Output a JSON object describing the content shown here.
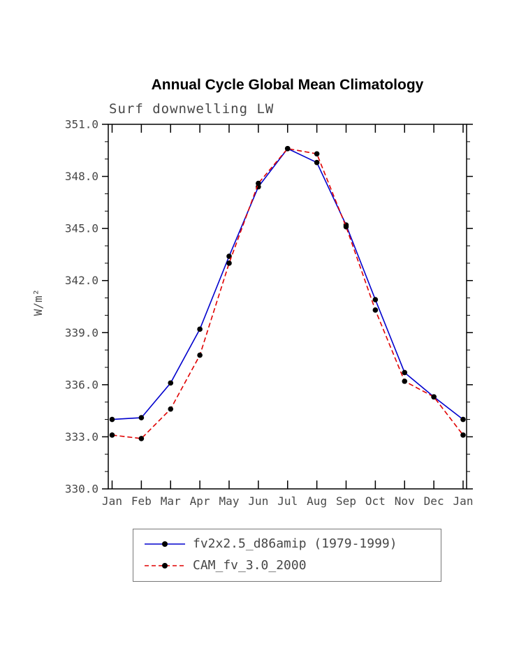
{
  "page": {
    "background": "#ffffff"
  },
  "chart_data": {
    "type": "line",
    "title": "Annual Cycle Global Mean Climatology",
    "subtitle": "Surf downwelling LW",
    "ylabel": "W/m²",
    "xlabel": "",
    "categories": [
      "Jan",
      "Feb",
      "Mar",
      "Apr",
      "May",
      "Jun",
      "Jul",
      "Aug",
      "Sep",
      "Oct",
      "Nov",
      "Dec",
      "Jan"
    ],
    "ylim": [
      330.0,
      351.0
    ],
    "yticks": [
      330.0,
      333.0,
      336.0,
      339.0,
      342.0,
      345.0,
      348.0,
      351.0
    ],
    "ytick_minor_interval": 1.0,
    "grid": false,
    "legend_position": "bottom",
    "marker_color": "#000000",
    "axis_color": "#000000",
    "axis_text_color": "#474747",
    "series": [
      {
        "name": "fv2x2.5_d86amip (1979-1999)",
        "color": "#0000cd",
        "style": "solid",
        "values": [
          334.0,
          334.1,
          336.1,
          339.2,
          343.4,
          347.4,
          349.6,
          348.8,
          345.2,
          340.9,
          336.7,
          335.3,
          334.0
        ]
      },
      {
        "name": "CAM_fv_3.0_2000",
        "color": "#e00000",
        "style": "dashed",
        "values": [
          333.1,
          332.9,
          334.6,
          337.7,
          343.0,
          347.6,
          349.6,
          349.3,
          345.1,
          340.3,
          336.2,
          335.3,
          333.1
        ]
      }
    ]
  }
}
